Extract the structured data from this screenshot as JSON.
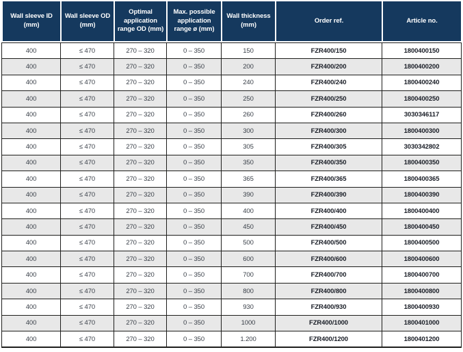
{
  "table": {
    "columns": [
      {
        "label": "Wall sleeve ID (mm)"
      },
      {
        "label": "Wall sleeve OD (mm)"
      },
      {
        "label": "Optimal application range OD (mm)"
      },
      {
        "label": "Max. possible application range ø (mm)"
      },
      {
        "label": "Wall thickness (mm)"
      },
      {
        "label": "Order ref."
      },
      {
        "label": "Article no."
      }
    ],
    "rows": [
      {
        "cells": [
          "400",
          "≤ 470",
          "270 – 320",
          "0 – 350",
          "150",
          "FZR400/150",
          "1800400150"
        ]
      },
      {
        "cells": [
          "400",
          "≤ 470",
          "270 – 320",
          "0 – 350",
          "200",
          "FZR400/200",
          "1800400200"
        ]
      },
      {
        "cells": [
          "400",
          "≤ 470",
          "270 – 320",
          "0 – 350",
          "240",
          "FZR400/240",
          "1800400240"
        ]
      },
      {
        "cells": [
          "400",
          "≤ 470",
          "270 – 320",
          "0 – 350",
          "250",
          "FZR400/250",
          "1800400250"
        ]
      },
      {
        "cells": [
          "400",
          "≤ 470",
          "270 – 320",
          "0 – 350",
          "260",
          "FZR400/260",
          "3030346117"
        ]
      },
      {
        "cells": [
          "400",
          "≤ 470",
          "270 – 320",
          "0 – 350",
          "300",
          "FZR400/300",
          "1800400300"
        ]
      },
      {
        "cells": [
          "400",
          "≤ 470",
          "270 – 320",
          "0 – 350",
          "305",
          "FZR400/305",
          "3030342802"
        ]
      },
      {
        "cells": [
          "400",
          "≤ 470",
          "270 – 320",
          "0 – 350",
          "350",
          "FZR400/350",
          "1800400350"
        ]
      },
      {
        "cells": [
          "400",
          "≤ 470",
          "270 – 320",
          "0 – 350",
          "365",
          "FZR400/365",
          "1800400365"
        ]
      },
      {
        "cells": [
          "400",
          "≤ 470",
          "270 – 320",
          "0 – 350",
          "390",
          "FZR400/390",
          "1800400390"
        ]
      },
      {
        "cells": [
          "400",
          "≤ 470",
          "270 – 320",
          "0 – 350",
          "400",
          "FZR400/400",
          "1800400400"
        ]
      },
      {
        "cells": [
          "400",
          "≤ 470",
          "270 – 320",
          "0 – 350",
          "450",
          "FZR400/450",
          "1800400450"
        ]
      },
      {
        "cells": [
          "400",
          "≤ 470",
          "270 – 320",
          "0 – 350",
          "500",
          "FZR400/500",
          "1800400500"
        ]
      },
      {
        "cells": [
          "400",
          "≤ 470",
          "270 – 320",
          "0 – 350",
          "600",
          "FZR400/600",
          "1800400600"
        ]
      },
      {
        "cells": [
          "400",
          "≤ 470",
          "270 – 320",
          "0 – 350",
          "700",
          "FZR400/700",
          "1800400700"
        ]
      },
      {
        "cells": [
          "400",
          "≤ 470",
          "270 – 320",
          "0 – 350",
          "800",
          "FZR400/800",
          "1800400800"
        ]
      },
      {
        "cells": [
          "400",
          "≤ 470",
          "270 – 320",
          "0 – 350",
          "930",
          "FZR400/930",
          "1800400930"
        ]
      },
      {
        "cells": [
          "400",
          "≤ 470",
          "270 – 320",
          "0 – 350",
          "1000",
          "FZR400/1000",
          "1800401000"
        ]
      },
      {
        "cells": [
          "400",
          "≤ 470",
          "270 – 320",
          "0 – 350",
          "1.200",
          "FZR400/1200",
          "1800401200"
        ]
      }
    ]
  },
  "colors": {
    "header_bg": "#15395e",
    "header_text": "#ffffff",
    "row_bg": "#ffffff",
    "row_alt_bg": "#e8e8e8",
    "grid_border": "#1d1d1b",
    "body_text": "#3a4049",
    "bold_text": "#191d26"
  }
}
